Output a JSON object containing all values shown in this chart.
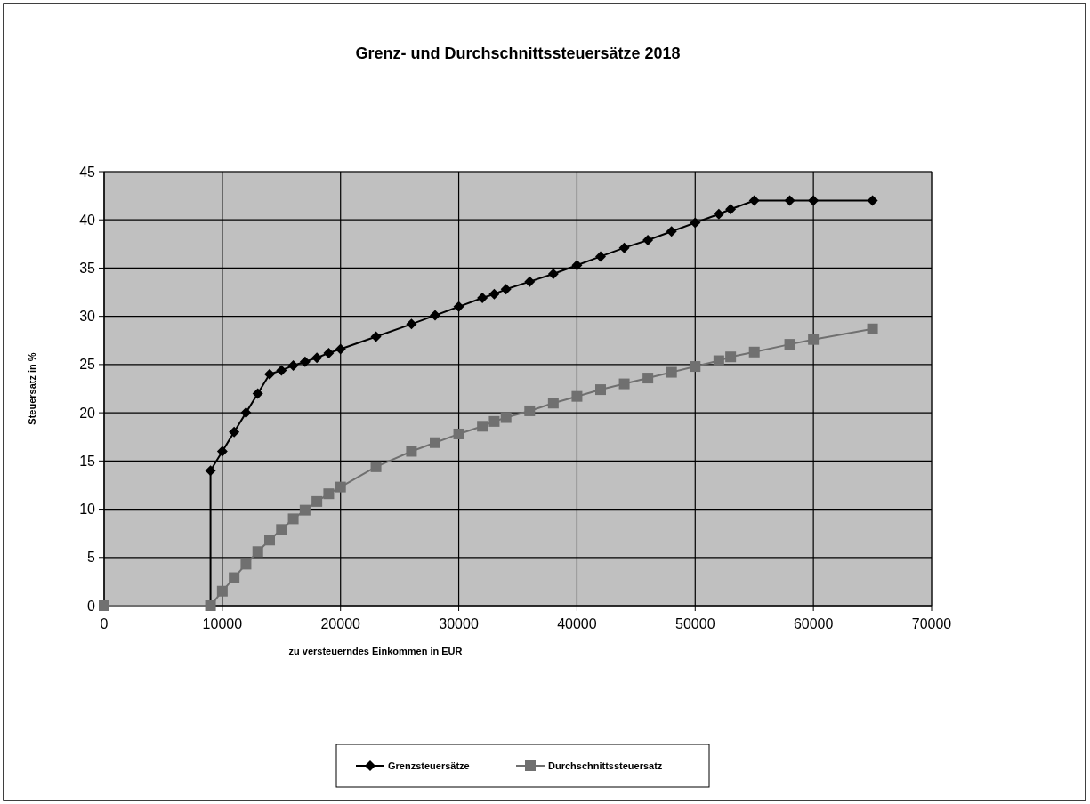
{
  "chart_data": {
    "type": "line",
    "title": "Grenz- und Durchschnittssteuersätze 2018",
    "xlabel": "zu versteuerndes Einkommen in EUR",
    "ylabel": "Steuersatz in %",
    "xlim": [
      0,
      70000
    ],
    "xticks": [
      0,
      10000,
      20000,
      30000,
      40000,
      50000,
      60000,
      70000
    ],
    "ylim": [
      0,
      45
    ],
    "yticks": [
      0,
      5,
      10,
      15,
      20,
      25,
      30,
      35,
      40,
      45
    ],
    "grid": true,
    "legend": "bottom",
    "series": [
      {
        "name": "Grenzsteuersätze",
        "color": "#000000",
        "marker": "diamond",
        "x": [
          0,
          9000,
          9000,
          10000,
          11000,
          12000,
          13000,
          14000,
          15000,
          16000,
          17000,
          18000,
          19000,
          20000,
          23000,
          26000,
          28000,
          30000,
          32000,
          33000,
          34000,
          36000,
          38000,
          40000,
          42000,
          44000,
          46000,
          48000,
          50000,
          52000,
          53000,
          55000,
          58000,
          60000,
          65000
        ],
        "values": [
          0,
          0,
          14,
          16,
          18,
          20,
          22,
          24,
          24.4,
          24.9,
          25.3,
          25.7,
          26.2,
          26.6,
          27.9,
          29.2,
          30.1,
          31,
          31.9,
          32.3,
          32.8,
          33.6,
          34.4,
          35.3,
          36.2,
          37.1,
          37.9,
          38.8,
          39.7,
          40.6,
          41.1,
          42,
          42,
          42,
          42
        ]
      },
      {
        "name": "Durchschnittssteuersatz",
        "color": "#707070",
        "marker": "square",
        "x": [
          0,
          9000,
          10000,
          11000,
          12000,
          13000,
          14000,
          15000,
          16000,
          17000,
          18000,
          19000,
          20000,
          23000,
          26000,
          28000,
          30000,
          32000,
          33000,
          34000,
          36000,
          38000,
          40000,
          42000,
          44000,
          46000,
          48000,
          50000,
          52000,
          53000,
          55000,
          58000,
          60000,
          65000
        ],
        "values": [
          0,
          0,
          1.5,
          2.9,
          4.3,
          5.6,
          6.8,
          7.9,
          9,
          9.9,
          10.8,
          11.6,
          12.3,
          14.4,
          16,
          16.9,
          17.8,
          18.6,
          19.1,
          19.5,
          20.2,
          21,
          21.7,
          22.4,
          23,
          23.6,
          24.2,
          24.8,
          25.4,
          25.8,
          26.3,
          27.1,
          27.6,
          28.7
        ]
      }
    ]
  }
}
